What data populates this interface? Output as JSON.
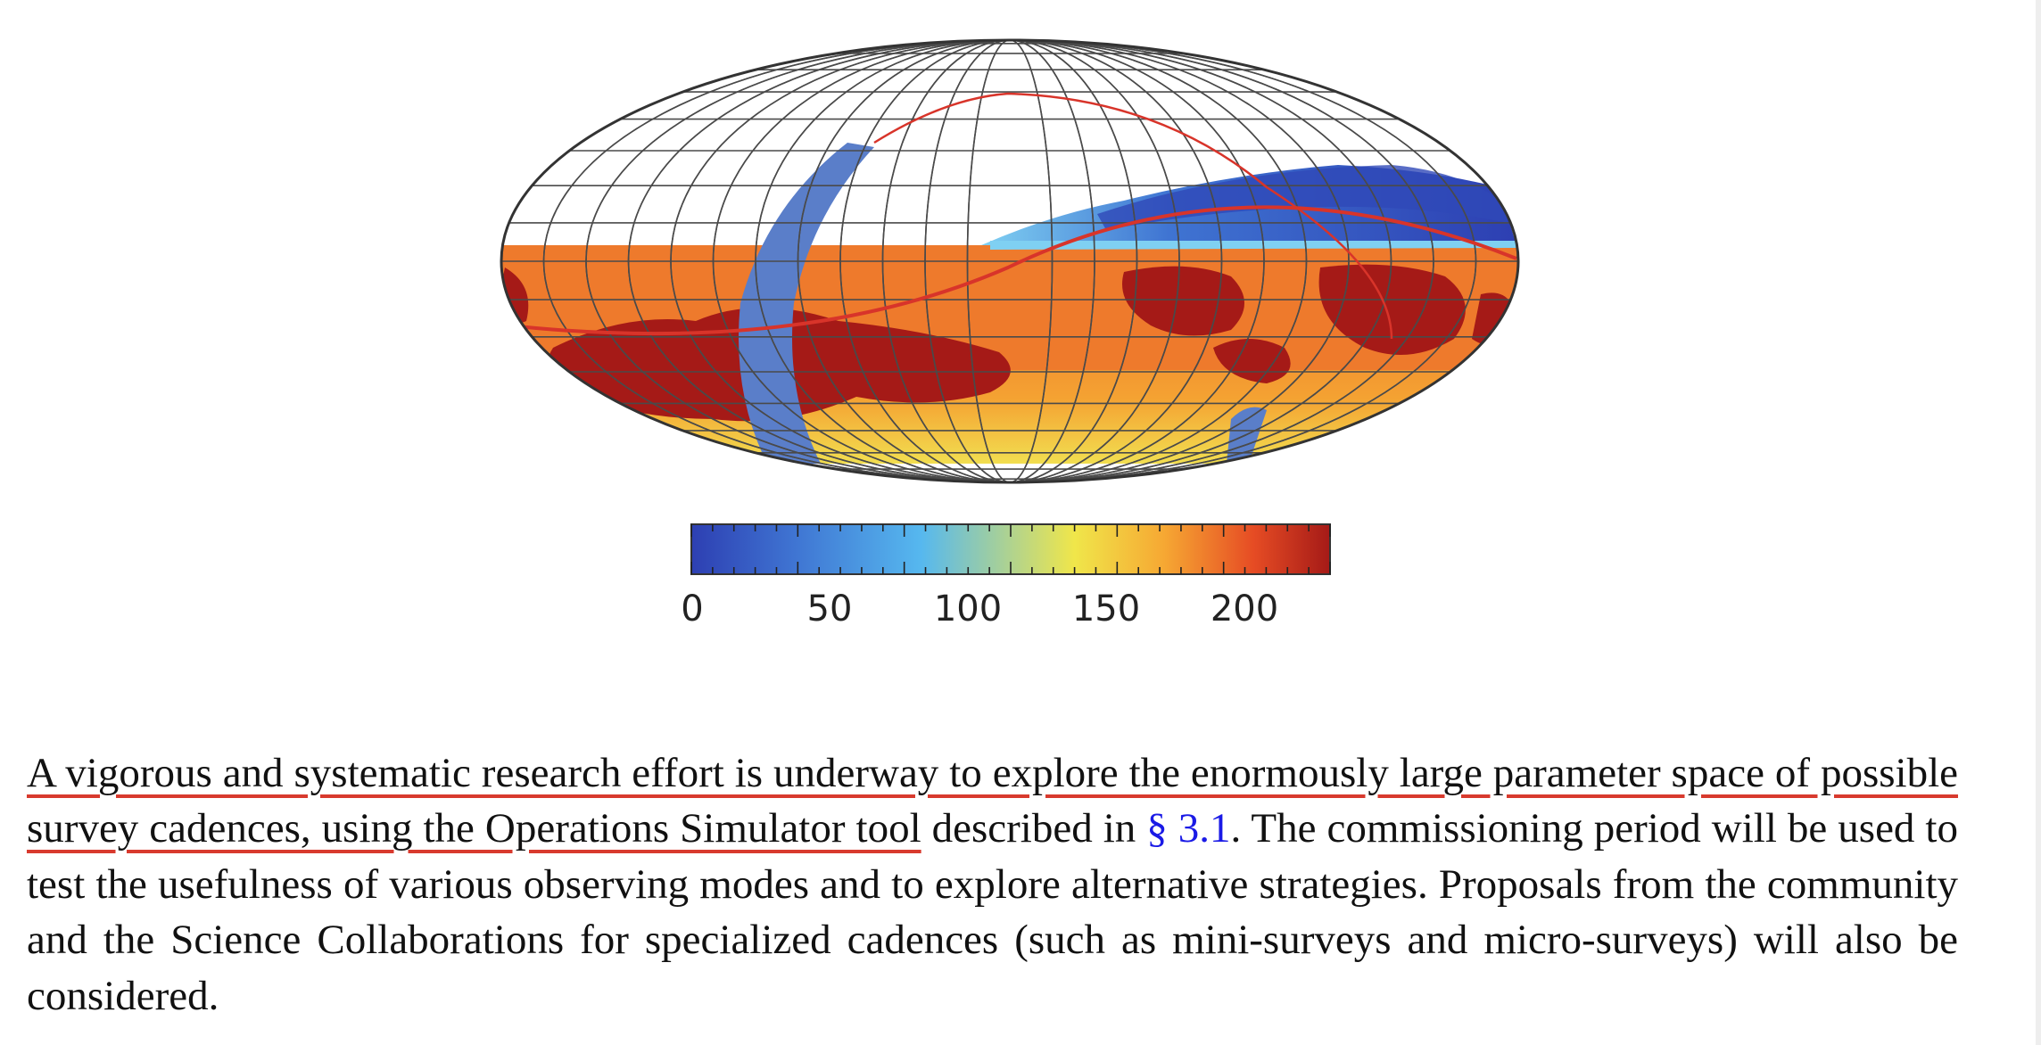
{
  "figure": {
    "map_type": "Aitoff/Mollweide all-sky map",
    "colorbar": {
      "ticks": [
        "0",
        "50",
        "100",
        "150",
        "200"
      ],
      "colors": [
        "#2d3fb2",
        "#3f74d2",
        "#56b8ef",
        "#f0e64a",
        "#f6a833",
        "#e64c24",
        "#a51a17"
      ]
    },
    "colors": {
      "grid": "#4a4a4a",
      "ecliptic": "#d8342a",
      "galactic_band": "#5a7ec9"
    }
  },
  "paragraph": {
    "underlined": "A vigorous and systematic research effort is underway to explore the enormously large parameter space of possible survey cadences, using the Operations Simulator tool",
    "pre_ref": " described in ",
    "ref_link": "§ 3.1",
    "post_ref": ".  The commissioning period will be used to test the usefulness of various observing modes and to explore alternative strategies.  Proposals from the community and the Science Collaborations for specialized cadences (such as mini-surveys and micro-surveys) will also be considered."
  }
}
